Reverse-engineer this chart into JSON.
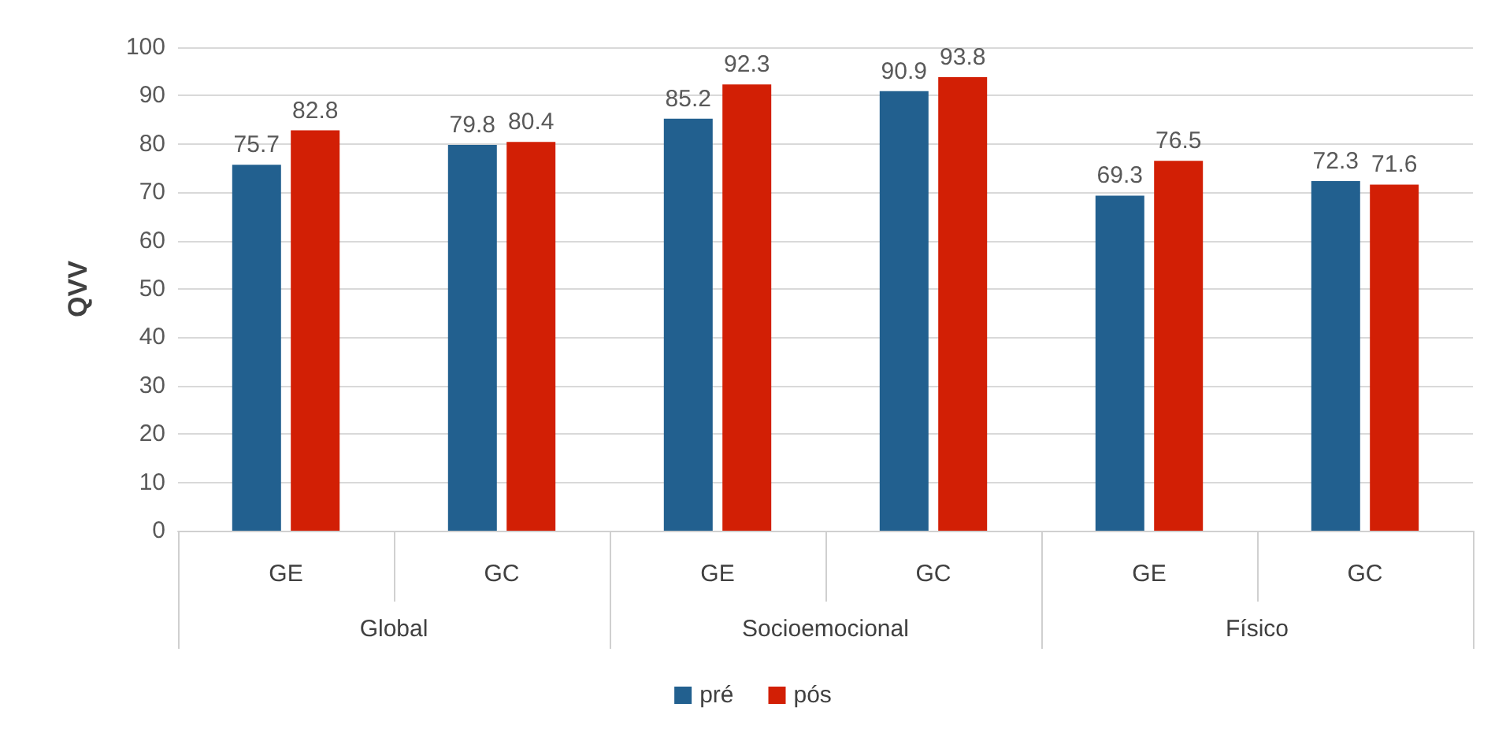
{
  "chart_data": {
    "type": "bar",
    "ylabel": "QVV",
    "categories": [
      "GE",
      "GC",
      "GE",
      "GC",
      "GE",
      "GC"
    ],
    "annotations": [
      "Global",
      "Socioemocional",
      "Físico"
    ],
    "series": [
      {
        "name": "pré",
        "color": "#22608f",
        "values": [
          75.7,
          79.8,
          85.2,
          90.9,
          69.3,
          72.3
        ]
      },
      {
        "name": "pós",
        "color": "#d21f05",
        "values": [
          82.8,
          80.4,
          92.3,
          93.8,
          76.5,
          71.6
        ]
      }
    ],
    "ylim": [
      0,
      100
    ],
    "yticks": [
      0,
      10,
      20,
      30,
      40,
      50,
      60,
      70,
      80,
      90,
      100
    ],
    "grid": "y",
    "legend": "bottom",
    "data_labels": true
  }
}
